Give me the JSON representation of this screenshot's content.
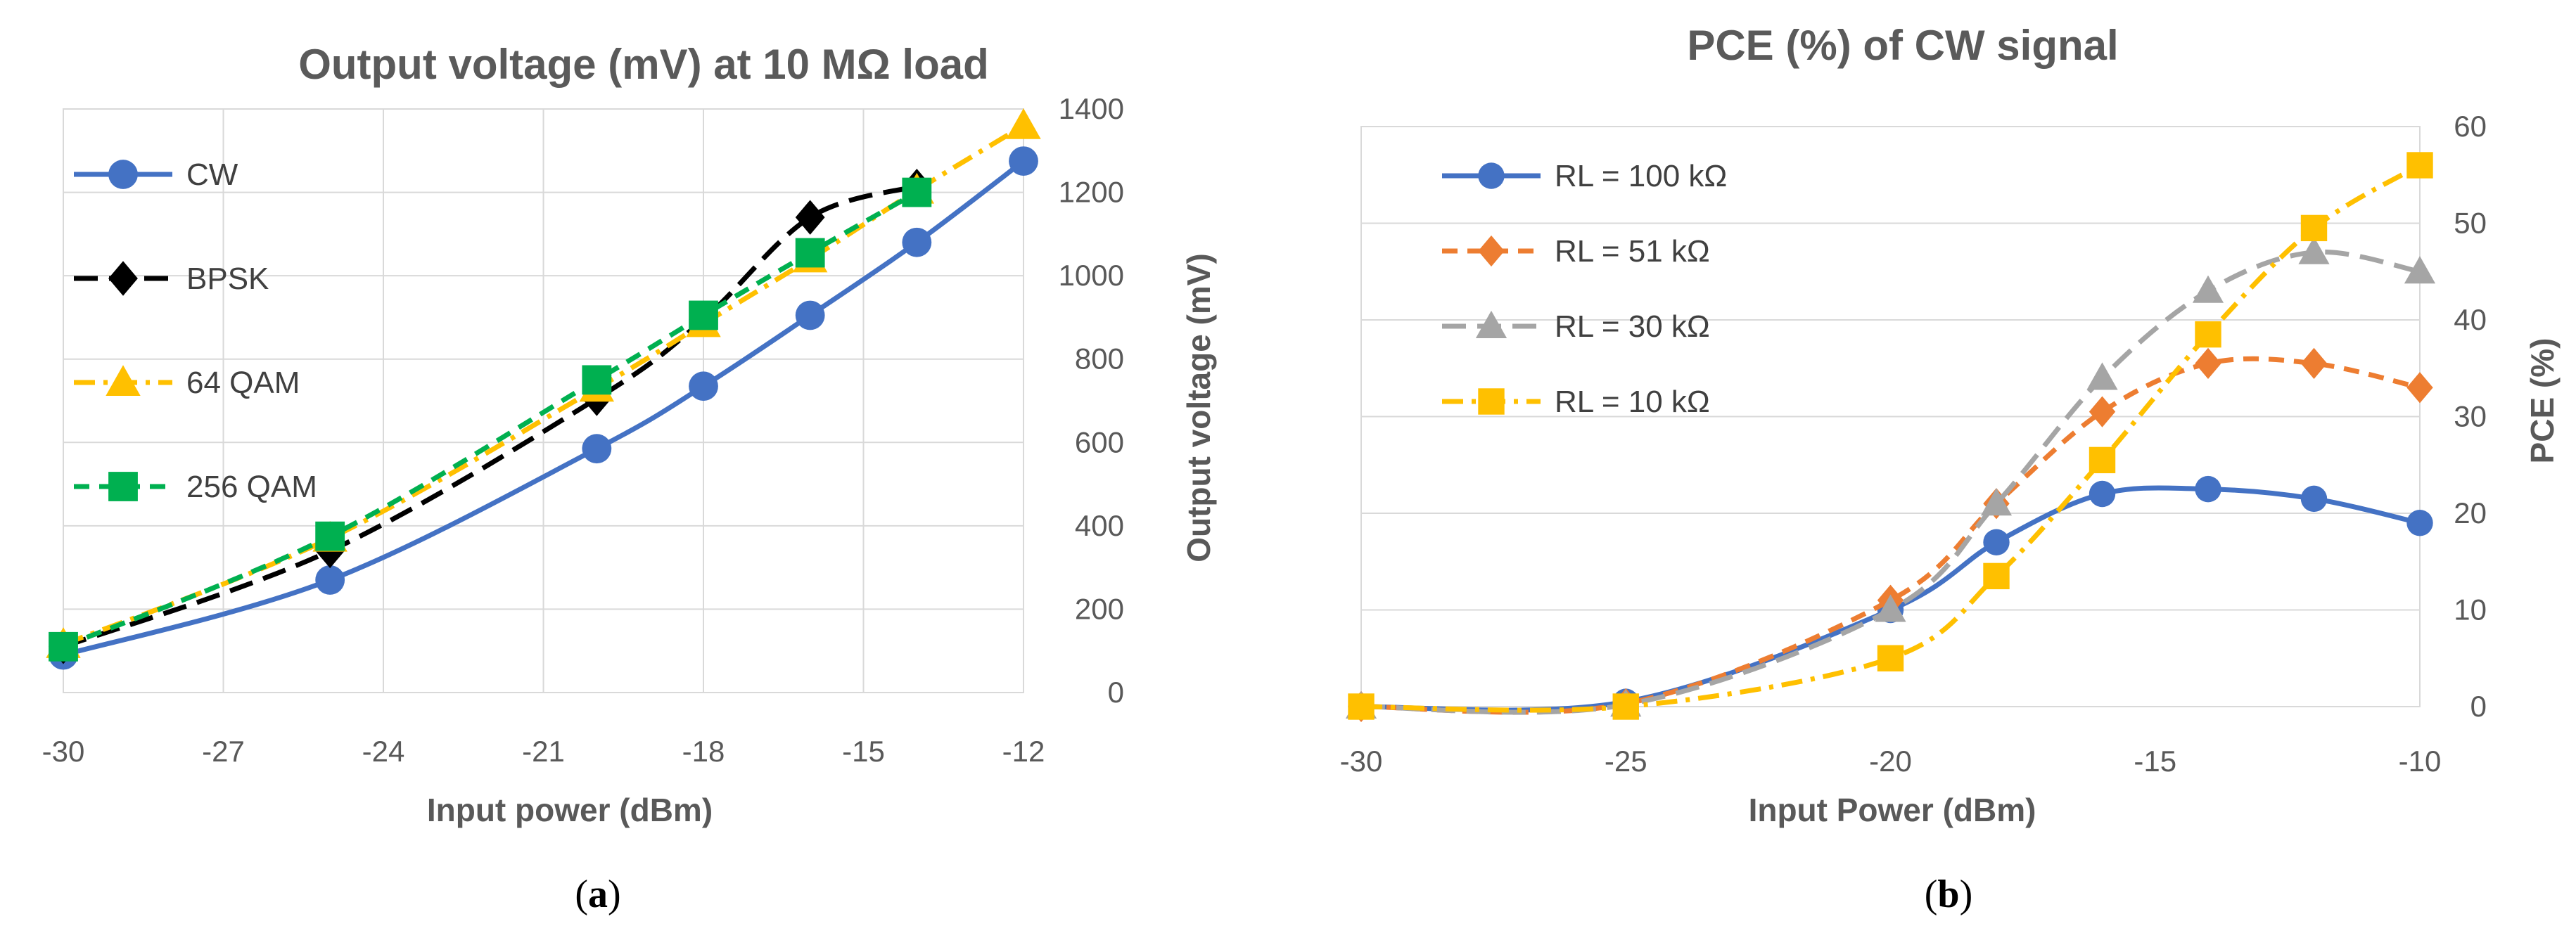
{
  "chart_data": [
    {
      "type": "line",
      "title": "Output voltage (mV) at 10 MΩ load",
      "xlabel": "Input power (dBm)",
      "ylabel": "Output voltage (mV)",
      "xlim": [
        -30,
        -12
      ],
      "ylim": [
        0,
        1400
      ],
      "x_ticks": [
        -30,
        -27,
        -24,
        -21,
        -18,
        -15,
        -12
      ],
      "y_ticks": [
        0,
        200,
        400,
        600,
        800,
        1000,
        1200,
        1400
      ],
      "y_axis_side": "right",
      "legend_position": "left",
      "caption": "a",
      "series": [
        {
          "name": "CW",
          "color": "#4472c4",
          "marker": "circle",
          "dash": "solid",
          "x": [
            -30,
            -25,
            -20,
            -18,
            -16,
            -14,
            -12
          ],
          "y": [
            90,
            270,
            585,
            735,
            905,
            1080,
            1275
          ]
        },
        {
          "name": "BPSK",
          "color": "#000000",
          "marker": "diamond",
          "dash": "long-dash",
          "x": [
            -30,
            -25,
            -20,
            -18,
            -16,
            -14
          ],
          "y": [
            110,
            340,
            705,
            895,
            1140,
            1215
          ]
        },
        {
          "name": "64 QAM",
          "color": "#ffc000",
          "marker": "triangle",
          "dash": "dash-dot",
          "x": [
            -30,
            -25,
            -20,
            -18,
            -16,
            -14,
            -12
          ],
          "y": [
            115,
            370,
            730,
            885,
            1040,
            1205,
            1360
          ]
        },
        {
          "name": "256 QAM",
          "color": "#00b050",
          "marker": "square",
          "dash": "dash",
          "x": [
            -30,
            -25,
            -20,
            -18,
            -16,
            -14
          ],
          "y": [
            110,
            375,
            750,
            905,
            1055,
            1200
          ]
        }
      ]
    },
    {
      "type": "line",
      "title": "PCE (%) of CW signal",
      "xlabel": "Input Power (dBm)",
      "ylabel": "PCE (%)",
      "xlim": [
        -30,
        -10
      ],
      "ylim": [
        0,
        60
      ],
      "x_ticks": [
        -30,
        -25,
        -20,
        -15,
        -10
      ],
      "y_ticks": [
        0,
        10,
        20,
        30,
        40,
        50,
        60
      ],
      "y_axis_side": "right",
      "legend_position": "left",
      "caption": "b",
      "series": [
        {
          "name": "RL = 100 kΩ",
          "color": "#4472c4",
          "marker": "circle",
          "dash": "solid",
          "x": [
            -30,
            -25,
            -20,
            -18,
            -16,
            -14,
            -12,
            -10
          ],
          "y": [
            0,
            0.5,
            10,
            17,
            22,
            22.5,
            21.5,
            19
          ]
        },
        {
          "name": "RL = 51 kΩ",
          "color": "#ed7d31",
          "marker": "diamond",
          "dash": "dash",
          "x": [
            -30,
            -25,
            -20,
            -18,
            -16,
            -14,
            -12,
            -10
          ],
          "y": [
            0,
            0.3,
            11,
            21,
            30.5,
            35.5,
            35.5,
            33
          ]
        },
        {
          "name": "RL = 30 kΩ",
          "color": "#a5a5a5",
          "marker": "triangle",
          "dash": "long-dash",
          "x": [
            -30,
            -25,
            -20,
            -18,
            -16,
            -14,
            -12,
            -10
          ],
          "y": [
            0,
            0.2,
            10,
            21,
            34,
            43,
            47,
            45
          ]
        },
        {
          "name": "RL = 10 kΩ",
          "color": "#ffc000",
          "marker": "square",
          "dash": "dash-dot",
          "x": [
            -30,
            -25,
            -20,
            -18,
            -16,
            -14,
            -12,
            -10
          ],
          "y": [
            0,
            0,
            5,
            13.5,
            25.5,
            38.5,
            49.5,
            56
          ]
        }
      ]
    }
  ]
}
